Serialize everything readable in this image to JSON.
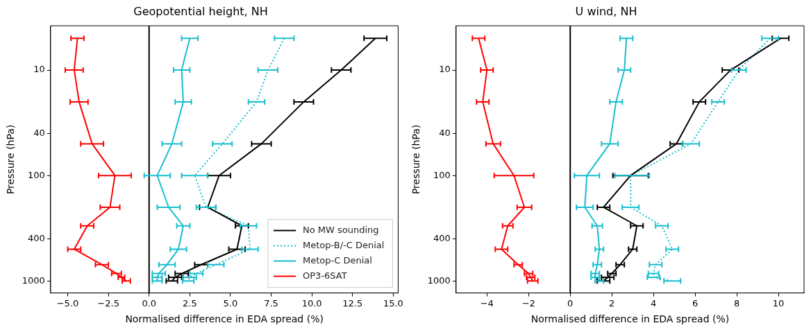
{
  "chart_data": [
    {
      "type": "line",
      "title": "Geopotential height, NH",
      "xlabel": "Normalised difference in EDA spread (%)",
      "ylabel": "Pressure (hPa)",
      "log": "y",
      "grid": false,
      "legend": "bottom right",
      "xlim": [
        -6.05,
        15.3
      ],
      "xticks": [
        {
          "value": -5,
          "label": "−5.0"
        },
        {
          "value": -2.5,
          "label": "−2.5"
        },
        {
          "value": 0,
          "label": "0.0"
        },
        {
          "value": 2.5,
          "label": "2.5"
        },
        {
          "value": 5,
          "label": "5.0"
        },
        {
          "value": 7.5,
          "label": "7.5"
        },
        {
          "value": 10,
          "label": "10.0"
        },
        {
          "value": 12.5,
          "label": "12.5"
        },
        {
          "value": 15,
          "label": "15.0"
        }
      ],
      "ylim": [
        1300,
        3.8
      ],
      "yticks": [
        10,
        40,
        100,
        400,
        1000
      ],
      "ref_lines": [
        {
          "axis": "x",
          "value": 0,
          "color": "#000000"
        }
      ],
      "series": [
        {
          "name": "No MW sounding",
          "color": "#000000",
          "line_style": "solid",
          "x": [
            13.9,
            11.8,
            9.5,
            6.9,
            4.3,
            3.6,
            5.7,
            5.4,
            3.2,
            2.0,
            1.6,
            1.4
          ],
          "values": [
            5,
            10,
            20,
            50,
            100,
            200,
            300,
            500,
            700,
            850,
            925,
            1000
          ],
          "xerrors": [
            0.7,
            0.6,
            0.6,
            0.6,
            0.7,
            0.5,
            0.4,
            0.5,
            0.4,
            0.4,
            0.4,
            0.35
          ]
        },
        {
          "name": "Metop-B/-C Denial",
          "color": "#17becf",
          "line_style": "dotted",
          "x": [
            8.3,
            7.3,
            6.6,
            4.5,
            2.8,
            3.5,
            6.1,
            6.2,
            4.1,
            2.9,
            2.5,
            2.4
          ],
          "values": [
            5,
            10,
            20,
            50,
            100,
            200,
            300,
            500,
            700,
            850,
            925,
            1000
          ],
          "xerrors": [
            0.6,
            0.6,
            0.5,
            0.6,
            0.8,
            0.6,
            0.5,
            0.5,
            0.5,
            0.4,
            0.4,
            0.35
          ]
        },
        {
          "name": "Metop-C Denial",
          "color": "#17becf",
          "line_style": "solid",
          "x": [
            2.5,
            2.0,
            2.1,
            1.4,
            0.5,
            1.2,
            2.1,
            1.8,
            1.1,
            0.6,
            0.5,
            0.5
          ],
          "values": [
            5,
            10,
            20,
            50,
            100,
            200,
            300,
            500,
            700,
            850,
            925,
            1000
          ],
          "xerrors": [
            0.5,
            0.5,
            0.5,
            0.6,
            0.8,
            0.7,
            0.4,
            0.5,
            0.5,
            0.4,
            0.3,
            0.3
          ]
        },
        {
          "name": "OP3-6SAT",
          "color": "#ff0000",
          "line_style": "solid",
          "x": [
            -4.4,
            -4.6,
            -4.3,
            -3.5,
            -2.1,
            -2.4,
            -3.8,
            -4.6,
            -2.9,
            -2.0,
            -1.7,
            -1.4
          ],
          "values": [
            5,
            10,
            20,
            50,
            100,
            200,
            300,
            500,
            700,
            850,
            925,
            1000
          ],
          "xerrors": [
            0.4,
            0.55,
            0.55,
            0.7,
            1.0,
            0.6,
            0.4,
            0.4,
            0.4,
            0.3,
            0.2,
            0.25
          ]
        }
      ]
    },
    {
      "type": "line",
      "title": "U wind, NH",
      "xlabel": "Normalised difference in EDA spread (%)",
      "ylabel": "Pressure (hPa)",
      "log": "y",
      "grid": false,
      "legend": false,
      "xlim": [
        -5.48,
        11.23
      ],
      "xticks": [
        {
          "value": -4,
          "label": "−4"
        },
        {
          "value": -2,
          "label": "−2"
        },
        0,
        2,
        4,
        6,
        8,
        10
      ],
      "ylim": [
        1300,
        3.8
      ],
      "yticks": [
        10,
        40,
        100,
        400,
        1000
      ],
      "ref_lines": [
        {
          "axis": "x",
          "value": 0,
          "color": "#000000"
        }
      ],
      "series": [
        {
          "color": "#000000",
          "line_style": "solid",
          "x": [
            10.1,
            7.7,
            6.2,
            5.1,
            2.9,
            1.6,
            3.2,
            3.0,
            2.4,
            2.0,
            1.8,
            1.6
          ],
          "values": [
            5,
            10,
            20,
            50,
            100,
            200,
            300,
            500,
            700,
            850,
            925,
            1000
          ],
          "xerrors": [
            0.4,
            0.4,
            0.3,
            0.3,
            0.85,
            0.3,
            0.3,
            0.2,
            0.2,
            0.2,
            0.3,
            0.3
          ]
        },
        {
          "color": "#17becf",
          "line_style": "dotted",
          "x": [
            9.6,
            8.1,
            7.1,
            5.8,
            2.9,
            2.9,
            4.4,
            4.9,
            4.1,
            4.0,
            4.0,
            4.9
          ],
          "values": [
            5,
            10,
            20,
            50,
            100,
            200,
            300,
            500,
            700,
            850,
            925,
            1000
          ],
          "xerrors": [
            0.4,
            0.35,
            0.3,
            0.4,
            [
              2.15,
              3.8
            ],
            0.4,
            0.3,
            0.3,
            0.3,
            0.25,
            0.3,
            0.4
          ]
        },
        {
          "color": "#17becf",
          "line_style": "solid",
          "x": [
            2.7,
            2.6,
            2.2,
            1.9,
            0.8,
            0.7,
            1.3,
            1.4,
            1.3,
            1.2,
            1.2,
            1.4
          ],
          "values": [
            5,
            10,
            20,
            50,
            100,
            200,
            300,
            500,
            700,
            850,
            925,
            1000
          ],
          "xerrors": [
            0.3,
            0.3,
            0.3,
            0.4,
            0.6,
            0.4,
            0.25,
            0.2,
            0.2,
            0.2,
            0.2,
            0.2
          ]
        },
        {
          "color": "#ff0000",
          "line_style": "solid",
          "x": [
            -4.4,
            -4.0,
            -4.2,
            -3.7,
            -2.7,
            -2.2,
            -3.0,
            -3.3,
            -2.5,
            -2.0,
            -1.9,
            -1.8
          ],
          "values": [
            5,
            10,
            20,
            50,
            100,
            200,
            300,
            500,
            700,
            850,
            925,
            1000
          ],
          "xerrors": [
            0.3,
            0.3,
            0.3,
            0.35,
            0.95,
            0.35,
            0.25,
            0.3,
            0.2,
            0.2,
            0.2,
            0.25
          ]
        }
      ]
    }
  ]
}
